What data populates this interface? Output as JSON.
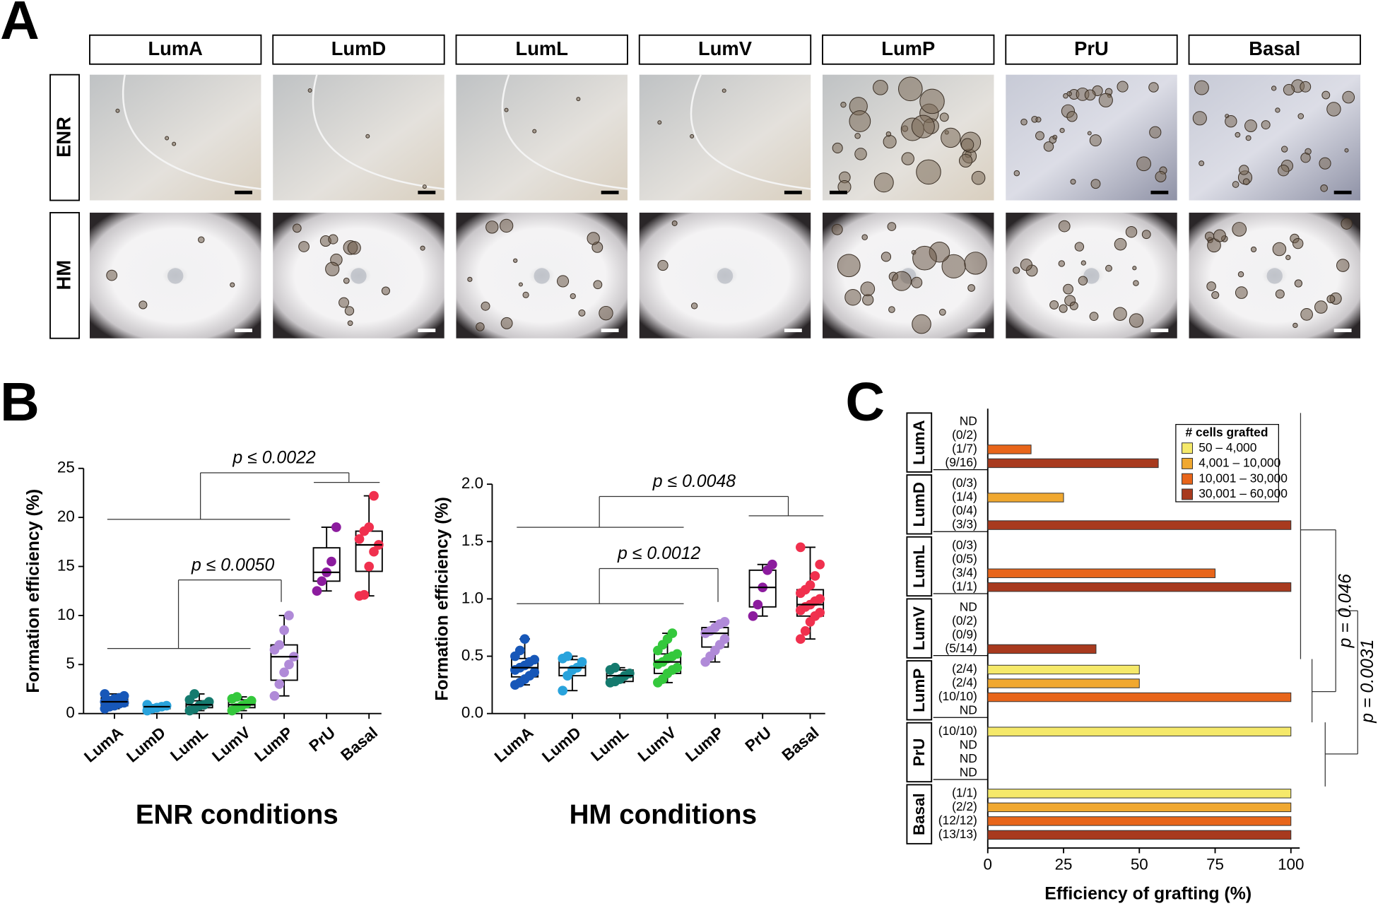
{
  "panel_labels": [
    "A",
    "B",
    "C"
  ],
  "panel_a": {
    "columns": [
      "LumA",
      "LumD",
      "LumL",
      "LumV",
      "LumP",
      "PrU",
      "Basal"
    ],
    "rows": [
      "ENR",
      "HM"
    ]
  },
  "chart_data": [
    {
      "type": "box",
      "title": "ENR conditions",
      "ylabel": "Formation efficiency (%)",
      "categories": [
        "LumA",
        "LumD",
        "LumL",
        "LumV",
        "LumP",
        "PrU",
        "Basal"
      ],
      "colors": [
        "#1757b8",
        "#29a3dc",
        "#157a6e",
        "#34c83c",
        "#b08ad8",
        "#8c1c9e",
        "#f0304e"
      ],
      "boxes": [
        {
          "min": 0.5,
          "q1": 0.8,
          "median": 1.2,
          "q3": 1.6,
          "max": 2.0,
          "points": [
            0.5,
            0.7,
            0.8,
            1.0,
            1.1,
            1.2,
            1.3,
            1.5,
            1.6,
            1.8,
            2.0
          ]
        },
        {
          "min": 0.3,
          "q1": 0.5,
          "median": 0.7,
          "q3": 0.8,
          "max": 0.9,
          "points": [
            0.3,
            0.5,
            0.6,
            0.7,
            0.8,
            0.9
          ]
        },
        {
          "min": 0.3,
          "q1": 0.6,
          "median": 0.9,
          "q3": 1.3,
          "max": 2.0,
          "points": [
            0.3,
            0.5,
            0.8,
            0.9,
            1.2,
            1.4,
            2.0
          ]
        },
        {
          "min": 0.3,
          "q1": 0.6,
          "median": 0.9,
          "q3": 1.4,
          "max": 1.7,
          "points": [
            0.3,
            0.6,
            0.8,
            1.0,
            1.3,
            1.5,
            1.7
          ]
        },
        {
          "min": 1.8,
          "q1": 3.4,
          "median": 5.8,
          "q3": 7.0,
          "max": 10.0,
          "points": [
            1.8,
            3.0,
            4.2,
            5.0,
            5.8,
            6.5,
            7.0,
            8.5,
            10.0
          ]
        },
        {
          "min": 12.5,
          "q1": 13.5,
          "median": 14.4,
          "q3": 16.9,
          "max": 19.0,
          "points": [
            12.5,
            13.5,
            14.4,
            15.5,
            19.0
          ]
        },
        {
          "min": 12.0,
          "q1": 14.5,
          "median": 17.2,
          "q3": 18.6,
          "max": 22.2,
          "points": [
            12.0,
            12.1,
            15.0,
            16.5,
            17.2,
            17.8,
            18.6,
            19.0,
            22.2
          ]
        }
      ],
      "ylim": [
        0,
        25
      ],
      "yticks": [
        0,
        5,
        10,
        15,
        20,
        25
      ],
      "annotations": [
        "p ≤ 0.0022",
        "p ≤ 0.0050"
      ]
    },
    {
      "type": "box",
      "title": "HM conditions",
      "ylabel": "Formation efficiency (%)",
      "categories": [
        "LumA",
        "LumD",
        "LumL",
        "LumV",
        "LumP",
        "PrU",
        "Basal"
      ],
      "colors": [
        "#1757b8",
        "#29a3dc",
        "#157a6e",
        "#34c83c",
        "#b08ad8",
        "#8c1c9e",
        "#f0304e"
      ],
      "boxes": [
        {
          "min": 0.25,
          "q1": 0.32,
          "median": 0.4,
          "q3": 0.48,
          "max": 0.65,
          "points": [
            0.25,
            0.27,
            0.3,
            0.33,
            0.36,
            0.38,
            0.4,
            0.42,
            0.45,
            0.47,
            0.5,
            0.55,
            0.65
          ]
        },
        {
          "min": 0.2,
          "q1": 0.33,
          "median": 0.4,
          "q3": 0.47,
          "max": 0.5,
          "points": [
            0.2,
            0.33,
            0.38,
            0.4,
            0.45,
            0.48,
            0.5
          ]
        },
        {
          "min": 0.27,
          "q1": 0.28,
          "median": 0.33,
          "q3": 0.38,
          "max": 0.4,
          "points": [
            0.27,
            0.28,
            0.3,
            0.33,
            0.35,
            0.38,
            0.4
          ]
        },
        {
          "min": 0.27,
          "q1": 0.35,
          "median": 0.45,
          "q3": 0.52,
          "max": 0.7,
          "points": [
            0.27,
            0.3,
            0.35,
            0.38,
            0.4,
            0.43,
            0.45,
            0.48,
            0.5,
            0.52,
            0.55,
            0.6,
            0.65,
            0.7
          ]
        },
        {
          "min": 0.45,
          "q1": 0.58,
          "median": 0.7,
          "q3": 0.75,
          "max": 0.8,
          "points": [
            0.45,
            0.5,
            0.55,
            0.6,
            0.65,
            0.7,
            0.72,
            0.75,
            0.78,
            0.8
          ]
        },
        {
          "min": 0.85,
          "q1": 0.93,
          "median": 1.1,
          "q3": 1.25,
          "max": 1.3,
          "points": [
            0.85,
            0.95,
            1.1,
            1.25,
            1.3
          ]
        },
        {
          "min": 0.65,
          "q1": 0.85,
          "median": 0.95,
          "q3": 1.08,
          "max": 1.45,
          "points": [
            0.65,
            0.72,
            0.8,
            0.85,
            0.88,
            0.9,
            0.93,
            0.95,
            0.98,
            1.0,
            1.05,
            1.08,
            1.12,
            1.2,
            1.3,
            1.45
          ]
        }
      ],
      "ylim": [
        0,
        2
      ],
      "yticks": [
        {
          "value": 0,
          "label": "0.0"
        },
        0.5,
        {
          "value": 1,
          "label": "1.0"
        },
        1.5,
        {
          "value": 2,
          "label": "2.0"
        }
      ],
      "annotations": [
        "p ≤ 0.0048",
        "p ≤ 0.0012"
      ]
    },
    {
      "type": "barh",
      "xlabel": "Efficiency of grafting (%)",
      "legend_title": "# cells grafted",
      "categories": [
        "LumA",
        "LumD",
        "LumL",
        "LumV",
        "LumP",
        "PrU",
        "Basal"
      ],
      "series": [
        {
          "name": "50 – 4,000",
          "color": "#f5e96a",
          "values": [
            null,
            0,
            0,
            null,
            50,
            100,
            100
          ],
          "value_labels": [
            "ND",
            "(0/3)",
            "(0/3)",
            "ND",
            "(2/4)",
            "(10/10)",
            "(1/1)"
          ]
        },
        {
          "name": "4,001 – 10,000",
          "color": "#f0a830",
          "values": [
            0,
            25,
            0,
            0,
            50,
            null,
            100
          ],
          "value_labels": [
            "(0/2)",
            "(1/4)",
            "(0/5)",
            "(0/2)",
            "(2/4)",
            "ND",
            "(2/2)"
          ]
        },
        {
          "name": "10,001 – 30,000",
          "color": "#e8651a",
          "values": [
            14.29,
            0,
            75,
            0,
            100,
            null,
            100
          ],
          "value_labels": [
            "(1/7)",
            "(0/4)",
            "(3/4)",
            "(0/9)",
            "(10/10)",
            "ND",
            "(12/12)"
          ]
        },
        {
          "name": "30,001 – 60,000",
          "color": "#a83a1e",
          "values": [
            56.25,
            100,
            100,
            35.71,
            null,
            null,
            100
          ],
          "value_labels": [
            "(9/16)",
            "(3/3)",
            "(1/1)",
            "(5/14)",
            "ND",
            "ND",
            "(13/13)"
          ]
        }
      ],
      "xlim": [
        0,
        100
      ],
      "xticks": [
        0,
        25,
        50,
        75,
        100
      ],
      "annotations": [
        "p = 0.046",
        "p = 0.0031"
      ]
    }
  ]
}
